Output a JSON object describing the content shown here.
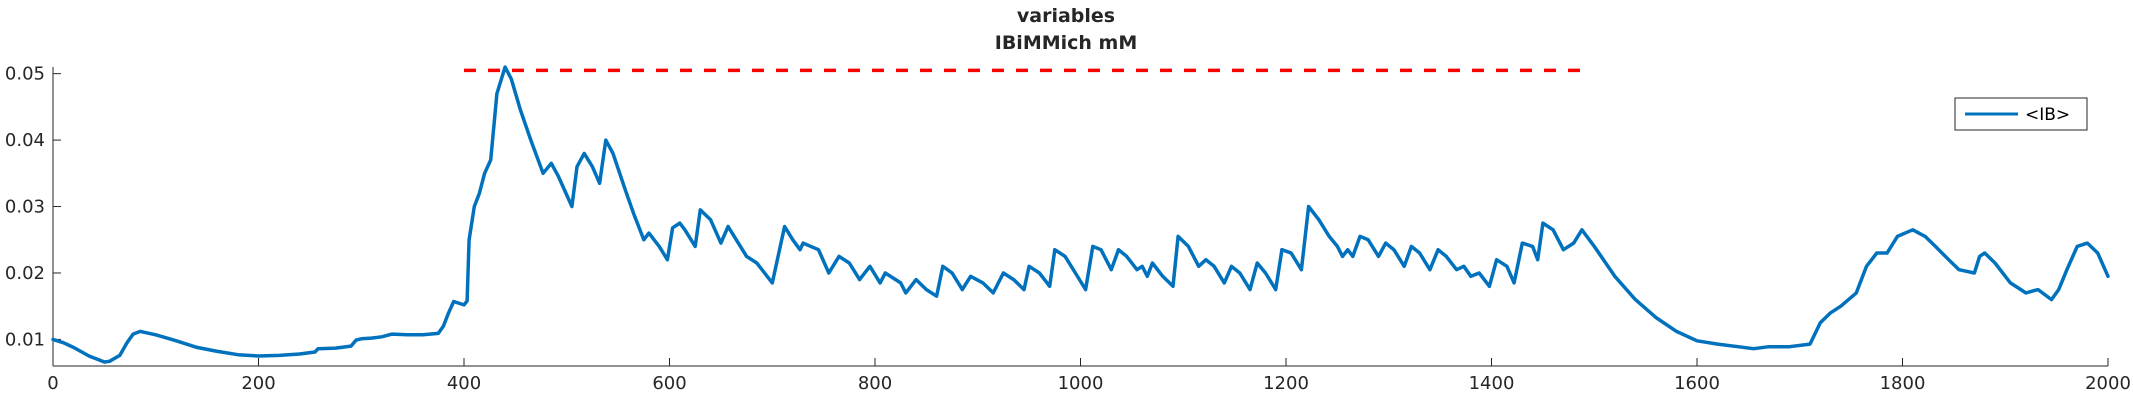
{
  "chart_data": {
    "type": "line",
    "title": "variables",
    "subtitle": "IBiMMich mM",
    "xlabel": "",
    "ylabel": "",
    "xlim": [
      0,
      2000
    ],
    "ylim": [
      0.006,
      0.051
    ],
    "grid": false,
    "legend_position": "top-right",
    "x_ticks": [
      0,
      200,
      400,
      600,
      800,
      1000,
      1200,
      1400,
      1600,
      1800,
      2000
    ],
    "x_tick_labels": [
      "0",
      "200",
      "400",
      "600",
      "800",
      "1000",
      "1200",
      "1400",
      "1600",
      "1800",
      "2000"
    ],
    "y_ticks": [
      0.01,
      0.02,
      0.03,
      0.04,
      0.05
    ],
    "y_tick_labels": [
      "0.01",
      "0.02",
      "0.03",
      "0.04",
      "0.05"
    ],
    "reference_line": {
      "style": "dashed",
      "color": "#ff0000",
      "y": 0.0505,
      "x_start": 400,
      "x_end": 1490
    },
    "series": [
      {
        "name": "<IB>",
        "color": "#0072bd",
        "points": [
          [
            0,
            0.01
          ],
          [
            10,
            0.0095
          ],
          [
            20,
            0.0088
          ],
          [
            35,
            0.0075
          ],
          [
            50,
            0.0066
          ],
          [
            55,
            0.0067
          ],
          [
            65,
            0.0076
          ],
          [
            72,
            0.0095
          ],
          [
            78,
            0.0108
          ],
          [
            85,
            0.0112
          ],
          [
            100,
            0.0107
          ],
          [
            120,
            0.0098
          ],
          [
            140,
            0.0088
          ],
          [
            160,
            0.0082
          ],
          [
            180,
            0.0077
          ],
          [
            200,
            0.0075
          ],
          [
            220,
            0.0076
          ],
          [
            240,
            0.0078
          ],
          [
            255,
            0.0081
          ],
          [
            258,
            0.0086
          ],
          [
            275,
            0.0087
          ],
          [
            290,
            0.009
          ],
          [
            295,
            0.0099
          ],
          [
            300,
            0.0101
          ],
          [
            310,
            0.0102
          ],
          [
            320,
            0.0104
          ],
          [
            330,
            0.0108
          ],
          [
            345,
            0.0107
          ],
          [
            360,
            0.0107
          ],
          [
            375,
            0.0109
          ],
          [
            380,
            0.012
          ],
          [
            385,
            0.014
          ],
          [
            390,
            0.0157
          ],
          [
            400,
            0.0152
          ],
          [
            403,
            0.0158
          ],
          [
            405,
            0.025
          ],
          [
            410,
            0.03
          ],
          [
            415,
            0.032
          ],
          [
            420,
            0.035
          ],
          [
            426,
            0.037
          ],
          [
            432,
            0.047
          ],
          [
            440,
            0.051
          ],
          [
            446,
            0.0492
          ],
          [
            455,
            0.0445
          ],
          [
            465,
            0.04
          ],
          [
            477,
            0.035
          ],
          [
            485,
            0.0365
          ],
          [
            492,
            0.0345
          ],
          [
            505,
            0.03
          ],
          [
            510,
            0.036
          ],
          [
            517,
            0.038
          ],
          [
            525,
            0.036
          ],
          [
            532,
            0.0335
          ],
          [
            538,
            0.04
          ],
          [
            545,
            0.038
          ],
          [
            557,
            0.0325
          ],
          [
            565,
            0.029
          ],
          [
            575,
            0.025
          ],
          [
            580,
            0.026
          ],
          [
            590,
            0.024
          ],
          [
            598,
            0.022
          ],
          [
            603,
            0.0268
          ],
          [
            610,
            0.0275
          ],
          [
            615,
            0.0265
          ],
          [
            625,
            0.024
          ],
          [
            630,
            0.0295
          ],
          [
            640,
            0.028
          ],
          [
            650,
            0.0245
          ],
          [
            657,
            0.027
          ],
          [
            665,
            0.025
          ],
          [
            675,
            0.0225
          ],
          [
            685,
            0.0215
          ],
          [
            700,
            0.0185
          ],
          [
            712,
            0.027
          ],
          [
            720,
            0.025
          ],
          [
            727,
            0.0235
          ],
          [
            730,
            0.0245
          ],
          [
            745,
            0.0235
          ],
          [
            755,
            0.02
          ],
          [
            765,
            0.0225
          ],
          [
            775,
            0.0215
          ],
          [
            785,
            0.019
          ],
          [
            795,
            0.021
          ],
          [
            805,
            0.0185
          ],
          [
            810,
            0.02
          ],
          [
            825,
            0.0185
          ],
          [
            830,
            0.017
          ],
          [
            840,
            0.019
          ],
          [
            850,
            0.0175
          ],
          [
            860,
            0.0165
          ],
          [
            866,
            0.021
          ],
          [
            875,
            0.02
          ],
          [
            885,
            0.0175
          ],
          [
            893,
            0.0195
          ],
          [
            905,
            0.0185
          ],
          [
            915,
            0.017
          ],
          [
            925,
            0.02
          ],
          [
            935,
            0.019
          ],
          [
            945,
            0.0175
          ],
          [
            950,
            0.021
          ],
          [
            960,
            0.02
          ],
          [
            970,
            0.018
          ],
          [
            975,
            0.0235
          ],
          [
            985,
            0.0225
          ],
          [
            995,
            0.02
          ],
          [
            1005,
            0.0175
          ],
          [
            1012,
            0.024
          ],
          [
            1020,
            0.0235
          ],
          [
            1030,
            0.0205
          ],
          [
            1037,
            0.0235
          ],
          [
            1045,
            0.0225
          ],
          [
            1055,
            0.0205
          ],
          [
            1060,
            0.021
          ],
          [
            1065,
            0.0195
          ],
          [
            1070,
            0.0215
          ],
          [
            1080,
            0.0195
          ],
          [
            1090,
            0.018
          ],
          [
            1095,
            0.0255
          ],
          [
            1105,
            0.024
          ],
          [
            1115,
            0.021
          ],
          [
            1122,
            0.022
          ],
          [
            1130,
            0.021
          ],
          [
            1140,
            0.0185
          ],
          [
            1147,
            0.021
          ],
          [
            1155,
            0.02
          ],
          [
            1165,
            0.0175
          ],
          [
            1172,
            0.0215
          ],
          [
            1180,
            0.02
          ],
          [
            1190,
            0.0175
          ],
          [
            1196,
            0.0235
          ],
          [
            1205,
            0.023
          ],
          [
            1215,
            0.0205
          ],
          [
            1222,
            0.03
          ],
          [
            1232,
            0.028
          ],
          [
            1242,
            0.0255
          ],
          [
            1250,
            0.024
          ],
          [
            1255,
            0.0225
          ],
          [
            1260,
            0.0235
          ],
          [
            1265,
            0.0225
          ],
          [
            1272,
            0.0255
          ],
          [
            1280,
            0.025
          ],
          [
            1290,
            0.0225
          ],
          [
            1297,
            0.0245
          ],
          [
            1305,
            0.0235
          ],
          [
            1315,
            0.021
          ],
          [
            1322,
            0.024
          ],
          [
            1330,
            0.023
          ],
          [
            1340,
            0.0205
          ],
          [
            1348,
            0.0235
          ],
          [
            1356,
            0.0225
          ],
          [
            1366,
            0.0205
          ],
          [
            1373,
            0.021
          ],
          [
            1380,
            0.0195
          ],
          [
            1388,
            0.02
          ],
          [
            1398,
            0.018
          ],
          [
            1405,
            0.022
          ],
          [
            1415,
            0.021
          ],
          [
            1422,
            0.0185
          ],
          [
            1430,
            0.0245
          ],
          [
            1440,
            0.024
          ],
          [
            1445,
            0.022
          ],
          [
            1450,
            0.0275
          ],
          [
            1460,
            0.0265
          ],
          [
            1470,
            0.0235
          ],
          [
            1480,
            0.0245
          ],
          [
            1488,
            0.0265
          ],
          [
            1500,
            0.024
          ],
          [
            1520,
            0.0195
          ],
          [
            1540,
            0.016
          ],
          [
            1560,
            0.0133
          ],
          [
            1580,
            0.0112
          ],
          [
            1600,
            0.0098
          ],
          [
            1620,
            0.0093
          ],
          [
            1640,
            0.0089
          ],
          [
            1655,
            0.0086
          ],
          [
            1670,
            0.0089
          ],
          [
            1690,
            0.0089
          ],
          [
            1710,
            0.0093
          ],
          [
            1720,
            0.0125
          ],
          [
            1730,
            0.014
          ],
          [
            1740,
            0.015
          ],
          [
            1755,
            0.017
          ],
          [
            1765,
            0.021
          ],
          [
            1775,
            0.023
          ],
          [
            1785,
            0.023
          ],
          [
            1795,
            0.0255
          ],
          [
            1810,
            0.0265
          ],
          [
            1822,
            0.0255
          ],
          [
            1832,
            0.024
          ],
          [
            1845,
            0.022
          ],
          [
            1855,
            0.0205
          ],
          [
            1870,
            0.02
          ],
          [
            1875,
            0.0225
          ],
          [
            1880,
            0.023
          ],
          [
            1890,
            0.0215
          ],
          [
            1905,
            0.0185
          ],
          [
            1920,
            0.017
          ],
          [
            1932,
            0.0175
          ],
          [
            1945,
            0.016
          ],
          [
            1952,
            0.0175
          ],
          [
            1960,
            0.0205
          ],
          [
            1970,
            0.024
          ],
          [
            1980,
            0.0245
          ],
          [
            1990,
            0.023
          ],
          [
            2000,
            0.0195
          ]
        ]
      }
    ]
  }
}
